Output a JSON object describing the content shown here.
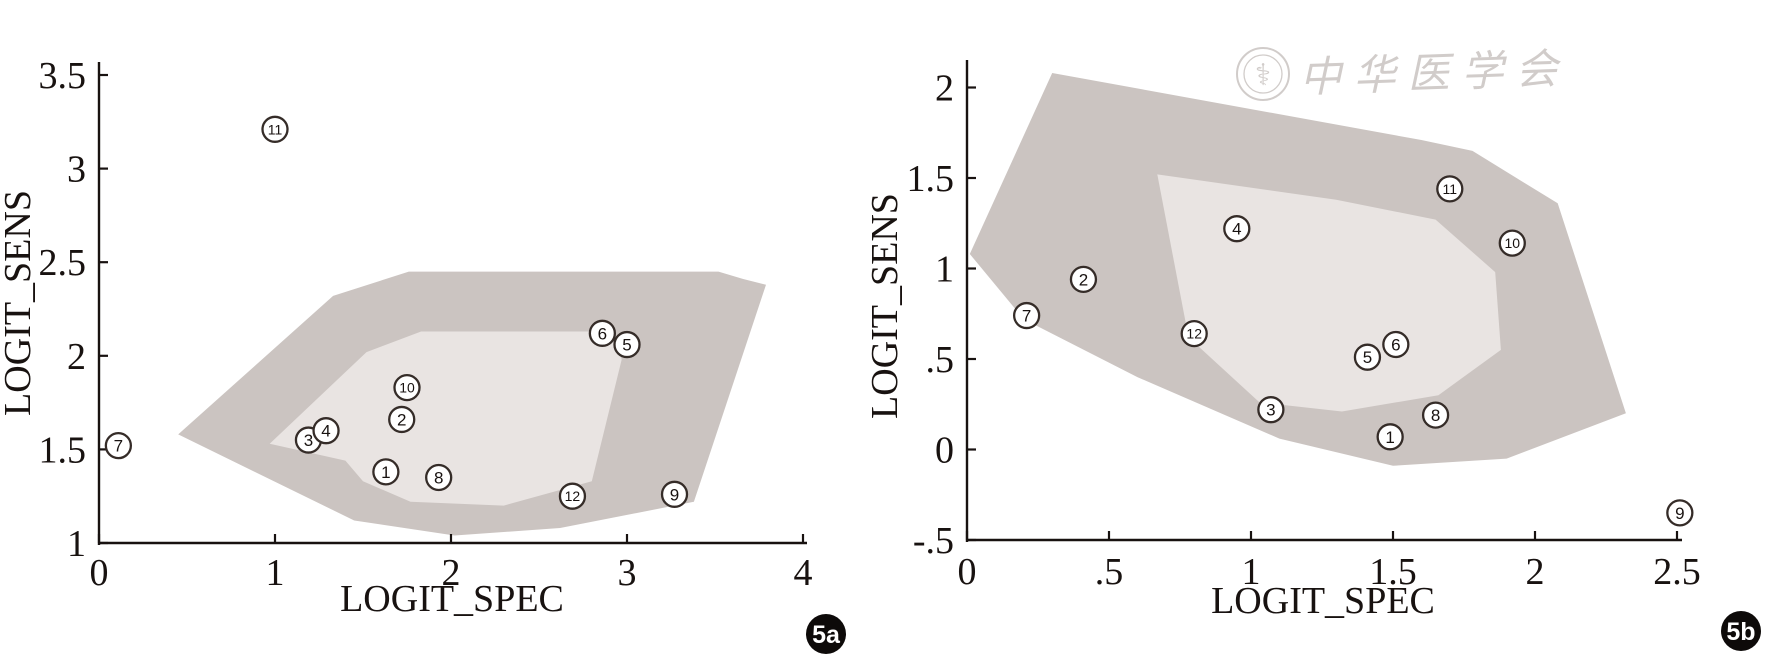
{
  "figure": {
    "title": "",
    "watermark": {
      "icon": "medical-seal-icon",
      "text": "中华医学会",
      "color": "#c9c4c1"
    },
    "colors": {
      "axis": "#181210",
      "marker_stroke": "#352c28",
      "marker_fill": "#ffffff",
      "outer_region": "#cbc4c1",
      "inner_region": "#e9e4e2",
      "badge_fill": "#0d0a09",
      "badge_text": "#ffffff"
    }
  },
  "chart_data": [
    {
      "id": "5a",
      "type": "scatter",
      "panel_label": "5a",
      "title": "",
      "xlabel": "LOGIT_SPEC",
      "ylabel": "LOGIT_SENS",
      "xlim": [
        0,
        4
      ],
      "ylim": [
        1,
        3.5
      ],
      "grid": false,
      "legend": null,
      "xticks": [
        {
          "v": 0,
          "label": "0"
        },
        {
          "v": 1,
          "label": "1"
        },
        {
          "v": 2,
          "label": "2"
        },
        {
          "v": 3,
          "label": "3"
        },
        {
          "v": 4,
          "label": "4"
        }
      ],
      "yticks": [
        {
          "v": 1,
          "label": "1"
        },
        {
          "v": 1.5,
          "label": "1.5"
        },
        {
          "v": 2,
          "label": "2"
        },
        {
          "v": 2.5,
          "label": "2.5"
        },
        {
          "v": 3,
          "label": "3"
        },
        {
          "v": 3.5,
          "label": "3.5"
        }
      ],
      "points": [
        {
          "label": "1",
          "x": 1.63,
          "y": 1.38
        },
        {
          "label": "2",
          "x": 1.72,
          "y": 1.66
        },
        {
          "label": "3",
          "x": 1.19,
          "y": 1.55
        },
        {
          "label": "4",
          "x": 1.29,
          "y": 1.6
        },
        {
          "label": "5",
          "x": 3.0,
          "y": 2.06
        },
        {
          "label": "6",
          "x": 2.86,
          "y": 2.12
        },
        {
          "label": "7",
          "x": 0.11,
          "y": 1.52
        },
        {
          "label": "8",
          "x": 1.93,
          "y": 1.35
        },
        {
          "label": "9",
          "x": 3.27,
          "y": 1.26
        },
        {
          "label": "10",
          "x": 1.75,
          "y": 1.83
        },
        {
          "label": "11",
          "x": 1.0,
          "y": 3.21
        },
        {
          "label": "12",
          "x": 2.69,
          "y": 1.25
        }
      ],
      "regions": [
        {
          "name": "outer-hull",
          "color": "#cbc4c1",
          "vertices": [
            [
              0.45,
              1.58
            ],
            [
              1.33,
              2.32
            ],
            [
              1.76,
              2.45
            ],
            [
              3.52,
              2.45
            ],
            [
              3.66,
              2.41
            ],
            [
              3.79,
              2.38
            ],
            [
              3.38,
              1.22
            ],
            [
              2.62,
              1.08
            ],
            [
              2.02,
              1.04
            ],
            [
              1.45,
              1.12
            ]
          ]
        },
        {
          "name": "inner-hull",
          "color": "#e9e4e2",
          "vertices": [
            [
              0.97,
              1.53
            ],
            [
              1.52,
              2.02
            ],
            [
              1.83,
              2.13
            ],
            [
              2.92,
              2.13
            ],
            [
              2.97,
              1.98
            ],
            [
              2.8,
              1.33
            ],
            [
              2.3,
              1.2
            ],
            [
              1.77,
              1.22
            ],
            [
              1.5,
              1.33
            ],
            [
              1.4,
              1.44
            ]
          ]
        }
      ]
    },
    {
      "id": "5b",
      "type": "scatter",
      "panel_label": "5b",
      "title": "",
      "xlabel": "LOGIT_SPEC",
      "ylabel": "LOGIT_SENS",
      "xlim": [
        0,
        2.5
      ],
      "ylim": [
        -0.5,
        2
      ],
      "grid": false,
      "legend": null,
      "xticks": [
        {
          "v": 0,
          "label": "0"
        },
        {
          "v": 0.5,
          "label": ".5"
        },
        {
          "v": 1,
          "label": "1"
        },
        {
          "v": 1.5,
          "label": "1.5"
        },
        {
          "v": 2,
          "label": "2"
        },
        {
          "v": 2.5,
          "label": "2.5"
        }
      ],
      "yticks": [
        {
          "v": -0.5,
          "label": "-.5"
        },
        {
          "v": 0,
          "label": "0"
        },
        {
          "v": 0.5,
          "label": ".5"
        },
        {
          "v": 1,
          "label": "1"
        },
        {
          "v": 1.5,
          "label": "1.5"
        },
        {
          "v": 2,
          "label": "2"
        }
      ],
      "points": [
        {
          "label": "1",
          "x": 1.49,
          "y": 0.07
        },
        {
          "label": "2",
          "x": 0.41,
          "y": 0.94
        },
        {
          "label": "3",
          "x": 1.07,
          "y": 0.22
        },
        {
          "label": "4",
          "x": 0.95,
          "y": 1.22
        },
        {
          "label": "5",
          "x": 1.41,
          "y": 0.51
        },
        {
          "label": "6",
          "x": 1.51,
          "y": 0.58
        },
        {
          "label": "7",
          "x": 0.21,
          "y": 0.74
        },
        {
          "label": "8",
          "x": 1.65,
          "y": 0.19
        },
        {
          "label": "9",
          "x": 2.51,
          "y": -0.35
        },
        {
          "label": "10",
          "x": 1.92,
          "y": 1.14
        },
        {
          "label": "11",
          "x": 1.7,
          "y": 1.44
        },
        {
          "label": "12",
          "x": 0.8,
          "y": 0.64
        }
      ],
      "regions": [
        {
          "name": "outer-hull",
          "color": "#cbc4c1",
          "vertices": [
            [
              0.01,
              1.08
            ],
            [
              0.3,
              2.08
            ],
            [
              1.6,
              1.71
            ],
            [
              1.78,
              1.65
            ],
            [
              2.08,
              1.36
            ],
            [
              2.32,
              0.2
            ],
            [
              1.9,
              -0.05
            ],
            [
              1.5,
              -0.09
            ],
            [
              1.1,
              0.06
            ],
            [
              0.6,
              0.4
            ],
            [
              0.2,
              0.72
            ]
          ]
        },
        {
          "name": "inner-hull",
          "color": "#e9e4e2",
          "vertices": [
            [
              0.67,
              1.52
            ],
            [
              1.3,
              1.38
            ],
            [
              1.65,
              1.27
            ],
            [
              1.86,
              0.98
            ],
            [
              1.88,
              0.55
            ],
            [
              1.66,
              0.3
            ],
            [
              1.32,
              0.21
            ],
            [
              1.03,
              0.26
            ],
            [
              0.78,
              0.62
            ]
          ]
        }
      ]
    }
  ]
}
